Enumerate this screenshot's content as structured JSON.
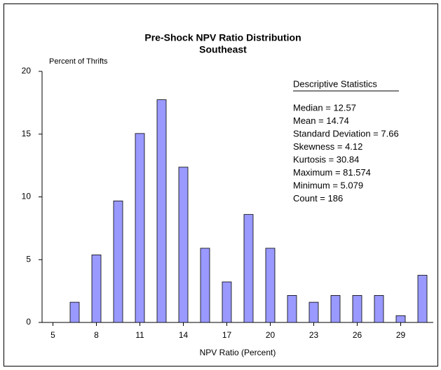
{
  "chart_data": {
    "type": "bar",
    "title": "Pre-Shock NPV Ratio Distribution",
    "subtitle": "Southeast",
    "y_label": "Percent of Thrifts",
    "x_label": "NPV Ratio (Percent)",
    "categories": [
      "5",
      null,
      "8",
      null,
      "11",
      null,
      "14",
      null,
      "17",
      null,
      "20",
      null,
      "23",
      null,
      "26",
      null,
      "29",
      null
    ],
    "values": [
      0,
      1.61,
      5.38,
      9.68,
      15.05,
      17.74,
      12.37,
      5.91,
      3.23,
      8.6,
      5.91,
      2.15,
      1.61,
      2.15,
      2.15,
      2.15,
      0.54,
      3.76
    ],
    "color": "#9999ff",
    "ylim": [
      0,
      20
    ],
    "yticks": [
      0,
      5,
      10,
      15,
      20
    ],
    "stats_heading": "Descriptive Statistics",
    "stats": [
      "Median = 12.57",
      "Mean = 14.74",
      "Standard Deviation = 7.66",
      "Skewness = 4.12",
      "Kurtosis = 30.84",
      "Maximum = 81.574",
      "Minimum = 5.079",
      "Count = 186"
    ]
  }
}
